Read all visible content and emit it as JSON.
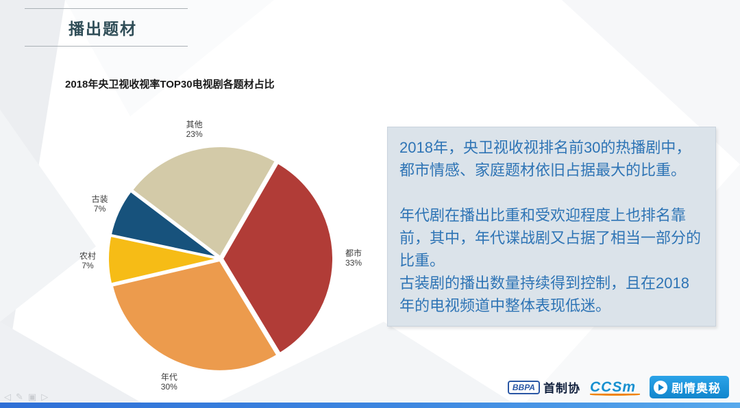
{
  "header": {
    "title": "播出题材"
  },
  "chart_data": {
    "type": "pie",
    "title": "2018年央卫视收视率TOP30电视剧各题材占比",
    "categories": [
      "都市",
      "年代",
      "农村",
      "古装",
      "其他"
    ],
    "values": [
      33,
      30,
      7,
      7,
      23
    ],
    "colors": [
      "#b13c37",
      "#ec9b4d",
      "#f6bc16",
      "#17527c",
      "#d3caa8"
    ],
    "start_angle_deg": 30,
    "direction": "clockwise",
    "unit": "%",
    "legend_position": "none",
    "label_style": "outside"
  },
  "textbox": {
    "text_color": "#2e74b5",
    "bg_color": "#dbe3ea",
    "paragraphs": [
      "2018年，央卫视收视排名前30的热播剧中，都市情感、家庭题材依旧占据最大的比重。",
      "",
      "年代剧在播出比重和受欢迎程度上也排名靠前，其中，年代谍战剧又占据了相当一部分的比重。",
      "古装剧的播出数量持续得到控制，且在2018年的电视频道中整体表现低迷。"
    ]
  },
  "footer": {
    "bbpa_label": "BBPA",
    "shouzhixie_label": "首制协",
    "ccsm_label": "CCSm",
    "juqing_label": "剧情奥秘"
  },
  "presenter_controls": [
    {
      "name": "prev-slide",
      "glyph": "◁"
    },
    {
      "name": "annotate-pen",
      "glyph": "✎"
    },
    {
      "name": "slide-menu",
      "glyph": "▣"
    },
    {
      "name": "next-slide",
      "glyph": "▷"
    }
  ]
}
